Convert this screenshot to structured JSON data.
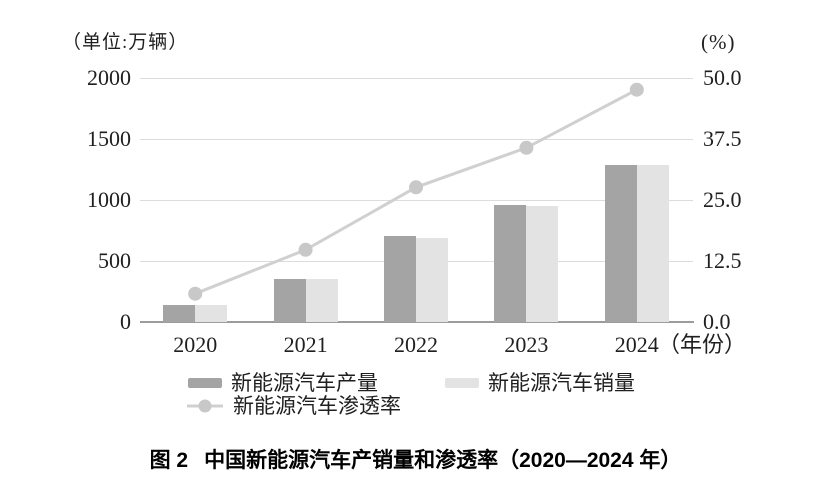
{
  "chart_data": {
    "type": "bar",
    "subtype": "grouped-bars-with-line-overlay",
    "title": "图 2 中国新能源汽车产销量和渗透率（2020—2024 年）",
    "caption_label": "图 2",
    "caption_title": "中国新能源汽车产销量和渗透率（2020—2024 年）",
    "left_axis_title": "（单位:万辆）",
    "right_axis_title": "(%)",
    "x_axis_title": "（年份）",
    "categories": [
      "2020",
      "2021",
      "2022",
      "2023",
      "2024"
    ],
    "left_axis": {
      "range": [
        0,
        2000
      ],
      "tick_values": [
        0,
        500,
        1000,
        1500,
        2000
      ],
      "tick_labels": [
        "0",
        "500",
        "1000",
        "1500",
        "2000"
      ]
    },
    "right_axis": {
      "range": [
        0,
        50
      ],
      "tick_values": [
        0,
        12.5,
        25,
        37.5,
        50
      ],
      "tick_labels": [
        "0.0",
        "12.5",
        "25.0",
        "37.5",
        "50.0"
      ]
    },
    "series": [
      {
        "name": "新能源汽车产量",
        "type": "bar",
        "axis": "left",
        "color": "#a4a4a4",
        "values": [
          137,
          355,
          706,
          959,
          1289
        ]
      },
      {
        "name": "新能源汽车销量",
        "type": "bar",
        "axis": "left",
        "color": "#e3e3e3",
        "values": [
          137,
          352,
          689,
          950,
          1287
        ]
      },
      {
        "name": "新能源汽车渗透率",
        "type": "line",
        "axis": "right",
        "color": "#d0d0d0",
        "marker_color": "#c8c8c8",
        "values": [
          5.8,
          14.8,
          27.6,
          35.7,
          47.6
        ]
      }
    ],
    "grid": "horizontal",
    "legend_position": "bottom"
  },
  "colors": {
    "grid": "#dcdcdc",
    "axis": "#9c9c9c",
    "text": "#1f1f1f",
    "background": "#ffffff"
  }
}
